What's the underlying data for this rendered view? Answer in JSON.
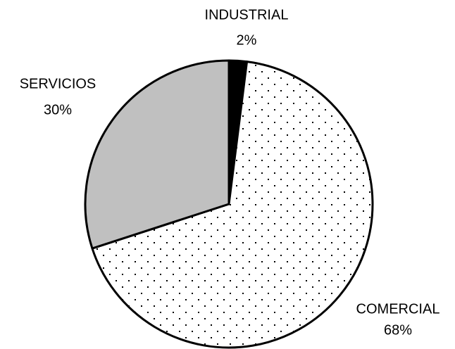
{
  "chart_data": {
    "type": "pie",
    "categories": [
      "INDUSTRIAL",
      "COMERCIAL",
      "SERVICIOS"
    ],
    "values": [
      2,
      68,
      30
    ],
    "value_labels": [
      "2%",
      "68%",
      "30%"
    ],
    "colors": [
      "#000000",
      "#ffffff",
      "#c0c0c0"
    ],
    "patterns": [
      null,
      "dots",
      null
    ]
  }
}
